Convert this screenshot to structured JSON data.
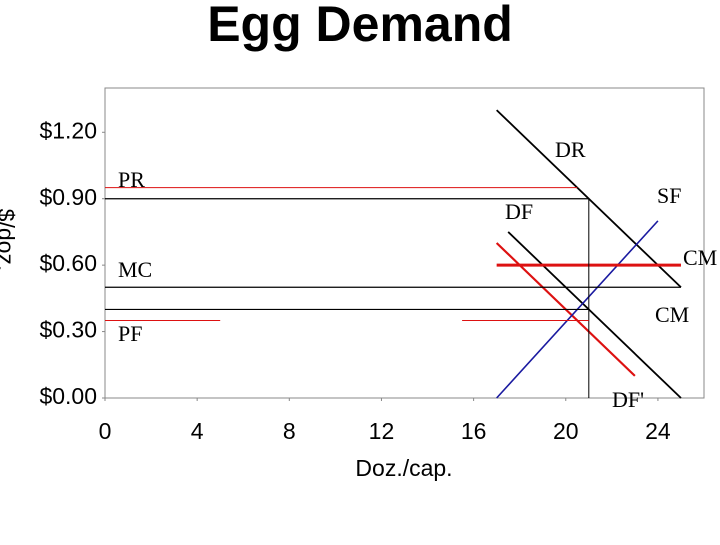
{
  "chart_data": {
    "type": "line",
    "title": "Egg Demand",
    "x_label": "Doz./cap.",
    "y_label": "$/doz.",
    "xlim": [
      0,
      26
    ],
    "ylim": [
      0,
      1.4
    ],
    "xticks": [
      0,
      4,
      8,
      12,
      16,
      20,
      24
    ],
    "yticks": [
      {
        "value": 0,
        "label": "$0.00"
      },
      {
        "value": 0.3,
        "label": "$0.30"
      },
      {
        "value": 0.6,
        "label": "$0.60"
      },
      {
        "value": 0.9,
        "label": "$0.90"
      },
      {
        "value": 1.2,
        "label": "$1.20"
      }
    ],
    "grid": false,
    "series": [
      {
        "color": "#000000",
        "x": [
          17,
          25
        ],
        "values": [
          1.3,
          0.5
        ]
      },
      {
        "color": "#000000",
        "x": [
          17.5,
          25
        ],
        "values": [
          0.75,
          0
        ]
      },
      {
        "color": "#dd1111",
        "x": [
          17,
          23
        ],
        "values": [
          0.7,
          0.1
        ]
      },
      {
        "color": "#1a1aa0",
        "x": [
          17,
          24
        ],
        "values": [
          0,
          0.8
        ]
      },
      {
        "color": "#dd1111",
        "x": [
          17,
          25
        ],
        "values": [
          0.6,
          0.6
        ]
      },
      {
        "color": "#dd1111",
        "x": [
          0,
          20.5
        ],
        "values": [
          0.95,
          0.95
        ]
      },
      {
        "color": "#000000",
        "x": [
          0,
          21
        ],
        "values": [
          0.9,
          0.9
        ]
      },
      {
        "color": "#000000",
        "x": [
          21,
          21
        ],
        "values": [
          0.9,
          0
        ]
      },
      {
        "color": "#000000",
        "x": [
          0,
          25
        ],
        "values": [
          0.5,
          0.5
        ]
      },
      {
        "color": "#000000",
        "x": [
          0,
          21
        ],
        "values": [
          0.4,
          0.4
        ]
      },
      {
        "color": "#dd1111",
        "x": [
          0,
          5
        ],
        "values": [
          0.35,
          0.35
        ]
      },
      {
        "color": "#dd1111",
        "x": [
          15.5,
          21
        ],
        "values": [
          0.35,
          0.35
        ]
      }
    ],
    "annotations": [
      "PR",
      "MC",
      "PF",
      "DR",
      "DF",
      "SF",
      "CM",
      "CM",
      "DF'"
    ]
  }
}
